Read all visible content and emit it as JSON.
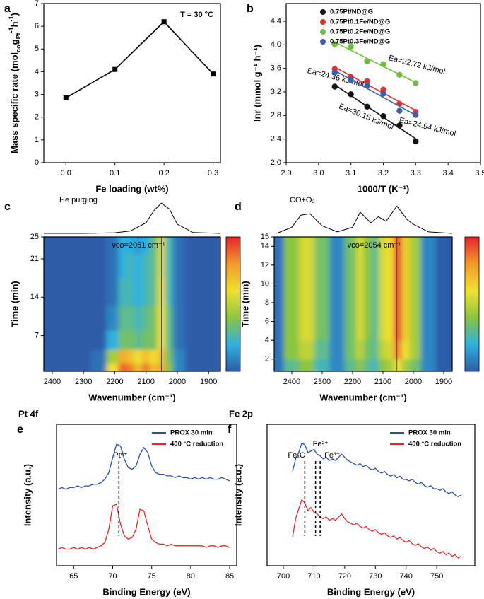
{
  "chart_data": [
    {
      "type": "line",
      "panel": "a",
      "annotation": "T = 30 °C",
      "color": "#000000",
      "xlabel": "Fe loading (wt%)",
      "ylabel": [
        "Mass specific rate (mol",
        "co",
        "g",
        "Pt",
        "-1",
        "h",
        "-1",
        ")"
      ],
      "x": [
        0,
        0.1,
        0.2,
        0.3
      ],
      "values": [
        2.85,
        4.1,
        6.2,
        3.9
      ],
      "xlim": [
        -0.045,
        0.315
      ],
      "xticks": [
        {
          "value": 0,
          "label": "0.0"
        },
        0.1,
        0.2,
        0.3
      ],
      "ylim": [
        0,
        7
      ],
      "yticks": [
        0,
        1,
        2,
        3,
        4,
        5,
        6,
        7
      ]
    },
    {
      "type": "scatter",
      "panel": "b",
      "xlabel": "1000/T (K⁻¹)",
      "ylabel": "lnr (mmol g⁻¹ h⁻¹)",
      "x": [
        3.05,
        3.1,
        3.15,
        3.2,
        3.25,
        3.3
      ],
      "series": [
        {
          "name": "0.75Pt/ND@G",
          "color": "#111111",
          "annotation": "Ea=30.15 kJ/mol",
          "values": [
            3.29,
            3.16,
            2.95,
            2.79,
            2.63,
            2.36
          ]
        },
        {
          "name": "0.75Pt0.1Fe/ND@G",
          "color": "#e03030",
          "annotation": "Ea=24.36 kJ/mol",
          "values": [
            3.59,
            3.45,
            3.38,
            3.24,
            3.0,
            2.86
          ]
        },
        {
          "name": "0.75Pt0.2Fe/ND@G",
          "color": "#6cbf3c",
          "annotation": "Ea=22.72 kJ/mol",
          "values": [
            4.01,
            3.97,
            3.72,
            3.67,
            3.49,
            3.35
          ]
        },
        {
          "name": "0.75Pt0.3Fe/ND@G",
          "color": "#3a5fb0",
          "annotation": "Ea=24.94 kJ/mol",
          "values": [
            3.53,
            3.4,
            3.31,
            3.17,
            2.88,
            2.81
          ]
        }
      ],
      "xlim": [
        2.9,
        3.5
      ],
      "xticks": [
        2.9,
        {
          "value": 3.0,
          "label": "3.0"
        },
        3.1,
        3.2,
        3.3,
        3.4,
        {
          "value": 3.5,
          "label": "3.5"
        }
      ],
      "ylim": [
        2.0,
        4.7
      ],
      "yticks": [
        {
          "value": 2.0,
          "label": "2.0"
        },
        2.4,
        2.8,
        3.2,
        3.6,
        {
          "value": 4.0,
          "label": "4.0"
        },
        4.4
      ]
    },
    {
      "type": "heatmap",
      "panel": "c",
      "title": "He purging",
      "xlabel": "Wavenumber (cm⁻¹)",
      "ylabel": "Time (min)",
      "colormap": [
        "#2d5ca9",
        "#2fb0e0",
        "#8cc63f",
        "#f0e030",
        "#f39a2b",
        "#e3262b"
      ],
      "zlim": [
        0,
        1
      ],
      "vline": {
        "x": 2051,
        "label": "νco=2051 cm⁻¹"
      },
      "spectrum": {
        "x": [
          2450,
          2300,
          2200,
          2150,
          2100,
          2075,
          2051,
          2025,
          2000,
          1950,
          1850
        ],
        "values": [
          0,
          0,
          0.02,
          0.08,
          0.35,
          0.75,
          1,
          0.8,
          0.3,
          0.03,
          0
        ]
      },
      "spectrum_ylim": [
        0,
        1.05
      ],
      "x": [
        2450,
        2400,
        2350,
        2300,
        2250,
        2200,
        2175,
        2150,
        2125,
        2100,
        2075,
        2050,
        2025,
        2000,
        1950,
        1900,
        1850
      ],
      "y": [
        1,
        3,
        6,
        10,
        15,
        20,
        24
      ],
      "z": [
        [
          0,
          0,
          0,
          0,
          0.05,
          0.6,
          0.9,
          0.85,
          0.7,
          0.85,
          0.7,
          0.75,
          0.4,
          0.1,
          0,
          0,
          0
        ],
        [
          0,
          0,
          0,
          0,
          0.05,
          0.45,
          0.75,
          0.7,
          0.6,
          0.7,
          0.6,
          0.7,
          0.35,
          0.1,
          0,
          0,
          0
        ],
        [
          0,
          0,
          0,
          0,
          0,
          0.2,
          0.35,
          0.35,
          0.3,
          0.35,
          0.35,
          0.6,
          0.3,
          0.05,
          0,
          0,
          0
        ],
        [
          0,
          0,
          0,
          0,
          0,
          0.1,
          0.3,
          0.3,
          0.25,
          0.3,
          0.35,
          0.6,
          0.3,
          0.05,
          0,
          0,
          0
        ],
        [
          0,
          0,
          0,
          0,
          0,
          0.05,
          0.25,
          0.25,
          0.2,
          0.25,
          0.3,
          0.58,
          0.25,
          0.05,
          0,
          0,
          0
        ],
        [
          0,
          0,
          0,
          0,
          0,
          0.05,
          0.2,
          0.25,
          0.2,
          0.25,
          0.3,
          0.55,
          0.25,
          0.05,
          0,
          0,
          0
        ],
        [
          0,
          0,
          0,
          0,
          0,
          0.05,
          0.2,
          0.2,
          0.15,
          0.2,
          0.3,
          0.55,
          0.25,
          0.05,
          0,
          0,
          0
        ]
      ],
      "xlim": [
        2427,
        1862
      ],
      "xticks": [
        2400,
        2300,
        2200,
        2100,
        2000,
        1900
      ],
      "ylim": [
        0.5,
        25
      ],
      "yticks": [
        7,
        14,
        21,
        25
      ]
    },
    {
      "type": "heatmap",
      "panel": "d",
      "title": "CO+O₂",
      "xlabel": "Wavenumber (cm⁻¹)",
      "ylabel": "Time (min)",
      "colormap": [
        "#2d5ca9",
        "#2fb0e0",
        "#8cc63f",
        "#f0e030",
        "#f39a2b",
        "#e3262b"
      ],
      "zlim": [
        0,
        1
      ],
      "vline": {
        "x": 2054,
        "label": "νco=2054 cm⁻¹"
      },
      "spectrum": {
        "x": [
          2450,
          2400,
          2370,
          2340,
          2300,
          2250,
          2200,
          2175,
          2140,
          2115,
          2090,
          2054,
          2020,
          2000,
          1950,
          1850
        ],
        "values": [
          0,
          0.2,
          0.6,
          0.65,
          0.25,
          0.05,
          0.2,
          0.7,
          0.35,
          0.55,
          0.4,
          0.9,
          0.45,
          0.3,
          0.05,
          0
        ]
      },
      "spectrum_ylim": [
        0,
        1.05
      ],
      "x": [
        2450,
        2400,
        2350,
        2300,
        2250,
        2200,
        2175,
        2150,
        2125,
        2100,
        2075,
        2050,
        2025,
        2000,
        1950,
        1900,
        1850
      ],
      "y": [
        1,
        3,
        5,
        8,
        11,
        14
      ],
      "z": [
        [
          0.05,
          0.3,
          0.4,
          0.25,
          0.1,
          0.3,
          0.4,
          0.3,
          0.25,
          0.4,
          0.45,
          0.6,
          0.45,
          0.35,
          0.1,
          0,
          0
        ],
        [
          0.05,
          0.4,
          0.5,
          0.3,
          0.1,
          0.35,
          0.5,
          0.35,
          0.3,
          0.5,
          0.55,
          0.85,
          0.6,
          0.45,
          0.1,
          0,
          0
        ],
        [
          0.05,
          0.4,
          0.55,
          0.35,
          0.1,
          0.35,
          0.55,
          0.4,
          0.3,
          0.55,
          0.6,
          0.95,
          0.65,
          0.45,
          0.1,
          0,
          0
        ],
        [
          0.05,
          0.4,
          0.55,
          0.35,
          0.1,
          0.35,
          0.55,
          0.4,
          0.3,
          0.55,
          0.6,
          0.95,
          0.65,
          0.45,
          0.1,
          0,
          0
        ],
        [
          0.05,
          0.4,
          0.55,
          0.35,
          0.1,
          0.35,
          0.55,
          0.4,
          0.3,
          0.55,
          0.6,
          0.95,
          0.65,
          0.45,
          0.1,
          0,
          0
        ],
        [
          0.05,
          0.4,
          0.55,
          0.35,
          0.1,
          0.35,
          0.55,
          0.4,
          0.3,
          0.55,
          0.6,
          0.95,
          0.65,
          0.45,
          0.1,
          0,
          0
        ]
      ],
      "xlim": [
        2458,
        1872
      ],
      "xticks": [
        2400,
        2300,
        2200,
        2100,
        2000,
        1900
      ],
      "ylim": [
        0.7,
        15
      ],
      "yticks": [
        2,
        4,
        6,
        8,
        10,
        12,
        14,
        15
      ]
    },
    {
      "type": "line",
      "panel": "e",
      "title": "Pt 4f",
      "xlabel": "Binding Energy (eV)",
      "ylabel": "Intensity (a.u.)",
      "vlines": [
        {
          "x": 70.8,
          "label": "Ptᵟ⁺"
        }
      ],
      "x": [
        63,
        63.5,
        64,
        64.5,
        65,
        65.5,
        66,
        66.5,
        67,
        67.5,
        68,
        68.5,
        69,
        69.5,
        70,
        70.5,
        71,
        71.5,
        72,
        72.5,
        73,
        73.5,
        74,
        74.5,
        75,
        75.5,
        76,
        76.5,
        77,
        77.5,
        78,
        78.5,
        79,
        79.5,
        80,
        80.5,
        81,
        81.5,
        82,
        82.5,
        83,
        83.5,
        84,
        84.5,
        85
      ],
      "series": [
        {
          "name": "PROX 30 min",
          "color": "#2b4fa0",
          "values": [
            0.46,
            0.47,
            0.46,
            0.47,
            0.47,
            0.48,
            0.47,
            0.48,
            0.48,
            0.49,
            0.49,
            0.5,
            0.52,
            0.56,
            0.65,
            0.73,
            0.72,
            0.64,
            0.59,
            0.58,
            0.6,
            0.67,
            0.71,
            0.68,
            0.6,
            0.56,
            0.55,
            0.55,
            0.54,
            0.54,
            0.53,
            0.54,
            0.53,
            0.53,
            0.52,
            0.53,
            0.52,
            0.53,
            0.52,
            0.53,
            0.52,
            0.52,
            0.53,
            0.52,
            0.51
          ]
        },
        {
          "name": "400 °C reduction",
          "color": "#e02a2a",
          "values": [
            0.1,
            0.11,
            0.1,
            0.1,
            0.11,
            0.1,
            0.11,
            0.1,
            0.11,
            0.1,
            0.11,
            0.12,
            0.14,
            0.22,
            0.36,
            0.37,
            0.25,
            0.18,
            0.16,
            0.17,
            0.22,
            0.34,
            0.33,
            0.24,
            0.16,
            0.14,
            0.13,
            0.13,
            0.12,
            0.13,
            0.12,
            0.12,
            0.12,
            0.12,
            0.12,
            0.12,
            0.12,
            0.12,
            0.11,
            0.12,
            0.12,
            0.11,
            0.12,
            0.12,
            0.11
          ]
        }
      ],
      "xlim": [
        62.8,
        85.9
      ],
      "xticks": [
        65,
        70,
        75,
        80,
        85
      ],
      "ylim": [
        0,
        0.85
      ]
    },
    {
      "type": "line",
      "panel": "f",
      "title": "Fe 2p",
      "xlabel": "Binding Energy (eV)",
      "ylabel": "Intensity (a.u.)",
      "vlines": [
        {
          "x": 707,
          "label": "FeₓC"
        },
        {
          "x": 710.5,
          "label": "Fe²⁺"
        },
        {
          "x": 712,
          "label": "Fe³⁺"
        }
      ],
      "x": [
        703,
        704,
        705,
        706,
        707,
        708,
        709,
        710,
        711,
        712,
        713,
        714,
        715,
        716,
        717,
        718,
        719,
        720,
        721,
        722,
        723,
        724,
        725,
        726,
        727,
        728,
        729,
        730,
        731,
        732,
        733,
        734,
        735,
        736,
        737,
        738,
        739,
        740,
        741,
        742,
        743,
        744,
        745,
        746,
        747,
        748,
        749,
        750,
        751,
        752,
        753,
        754,
        755,
        756,
        757,
        758
      ],
      "series": [
        {
          "name": "PROX 30 min",
          "color": "#2b4fa0",
          "values": [
            0.6,
            0.68,
            0.72,
            0.78,
            0.77,
            0.72,
            0.73,
            0.74,
            0.71,
            0.7,
            0.68,
            0.69,
            0.67,
            0.68,
            0.67,
            0.69,
            0.71,
            0.69,
            0.67,
            0.66,
            0.65,
            0.64,
            0.65,
            0.63,
            0.64,
            0.62,
            0.61,
            0.62,
            0.6,
            0.59,
            0.6,
            0.58,
            0.57,
            0.58,
            0.56,
            0.57,
            0.55,
            0.55,
            0.54,
            0.55,
            0.53,
            0.52,
            0.53,
            0.51,
            0.5,
            0.51,
            0.49,
            0.49,
            0.48,
            0.49,
            0.47,
            0.46,
            0.47,
            0.45,
            0.44,
            0.45
          ]
        },
        {
          "name": "400 °C reduction",
          "color": "#e02a2a",
          "values": [
            0.18,
            0.3,
            0.36,
            0.42,
            0.4,
            0.35,
            0.37,
            0.34,
            0.33,
            0.31,
            0.3,
            0.31,
            0.29,
            0.3,
            0.29,
            0.31,
            0.33,
            0.3,
            0.28,
            0.27,
            0.26,
            0.27,
            0.25,
            0.24,
            0.25,
            0.23,
            0.22,
            0.23,
            0.21,
            0.2,
            0.21,
            0.19,
            0.18,
            0.19,
            0.17,
            0.18,
            0.16,
            0.15,
            0.16,
            0.14,
            0.13,
            0.14,
            0.12,
            0.11,
            0.12,
            0.1,
            0.11,
            0.09,
            0.08,
            0.09,
            0.07,
            0.08,
            0.06,
            0.07,
            0.05,
            0.06
          ]
        }
      ],
      "xlim": [
        694.7,
        762.4
      ],
      "xticks": [
        700,
        710,
        720,
        730,
        740,
        750
      ],
      "ylim": [
        0,
        0.9
      ]
    }
  ]
}
